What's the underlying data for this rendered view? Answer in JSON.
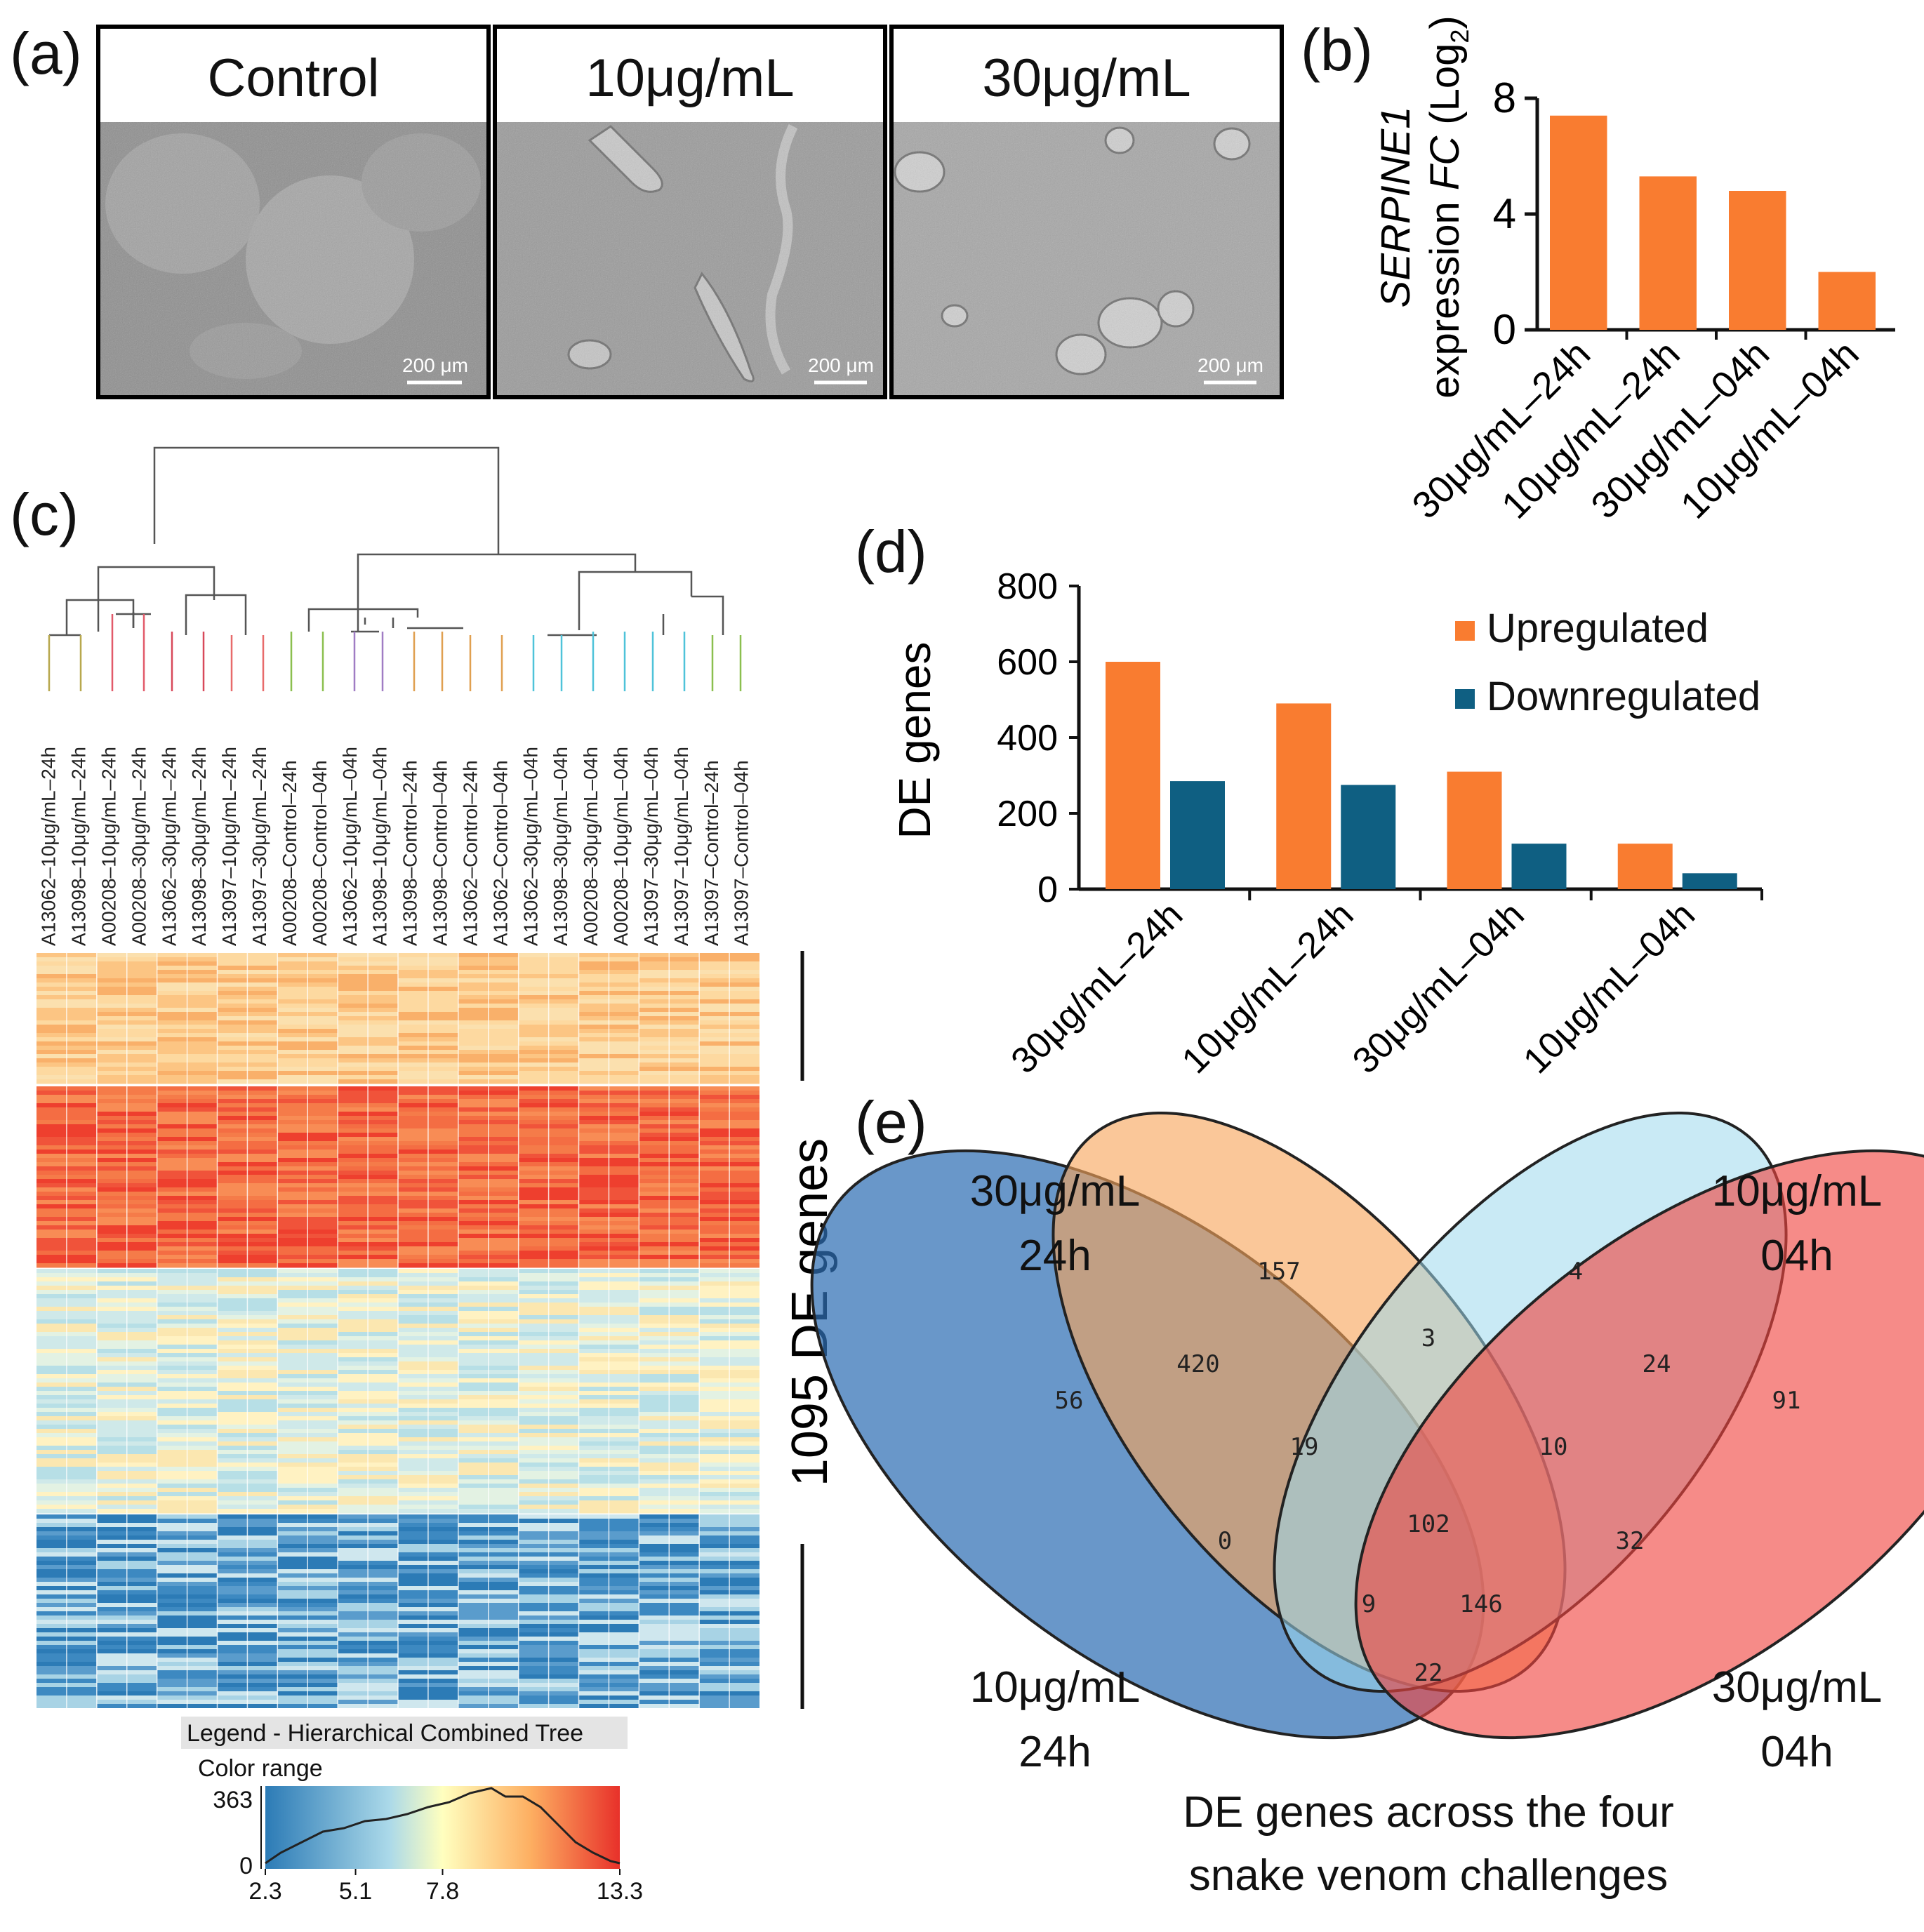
{
  "panel_labels": {
    "a": "(a)",
    "b": "(b)",
    "c": "(c)",
    "d": "(d)",
    "e": "(e)"
  },
  "panel_a": {
    "headers": [
      "Control",
      "10μg/mL",
      "30μg/mL"
    ],
    "scale_bar": "200 μm"
  },
  "colors": {
    "orange": "#f97c30",
    "teal": "#0f5f82",
    "venn_blue": "#2f6fb4",
    "venn_orange": "#f7a45a",
    "venn_cyan": "#9dd8ec",
    "venn_red": "#f0443f"
  },
  "chart_data": [
    {
      "type": "bar",
      "title": "",
      "ylabel_gene": "SERPINE1",
      "ylabel_line2_prefix": "expression ",
      "ylabel_fc": "FC",
      "ylabel_log": "(Log",
      "ylabel_sub": "2",
      "ylabel_close": ")",
      "categories": [
        "30μg/mL–24h",
        "10μg/mL–24h",
        "30μg/mL–04h",
        "10μg/mL–04h"
      ],
      "values": [
        7.4,
        5.3,
        4.8,
        2.0
      ],
      "ylim": [
        0,
        8
      ],
      "yticks": [
        "0",
        "4",
        "8"
      ],
      "ytick_values": [
        0,
        4,
        8
      ]
    },
    {
      "type": "bar",
      "ylabel": "DE genes",
      "categories": [
        "30μg/mL–24h",
        "10μg/mL–24h",
        "30μg/mL–04h",
        "10μg/mL–04h"
      ],
      "series": [
        {
          "name": "Upregulated",
          "values": [
            600,
            490,
            310,
            120
          ]
        },
        {
          "name": "Downregulated",
          "values": [
            285,
            275,
            120,
            42
          ]
        }
      ],
      "ylim": [
        0,
        800
      ],
      "yticks": [
        "0",
        "200",
        "400",
        "600",
        "800"
      ],
      "ytick_values": [
        0,
        200,
        400,
        600,
        800
      ]
    },
    {
      "type": "heatmap",
      "samples": [
        "A13062–10μg/mL–24h",
        "A13098–10μg/mL–24h",
        "A00208–10μg/mL–24h",
        "A00208–30μg/mL–24h",
        "A13062–30μg/mL–24h",
        "A13098–30μg/mL–24h",
        "A13097–10μg/mL–24h",
        "A13097–30μg/mL–24h",
        "A00208–Control–24h",
        "A00208–Control–04h",
        "A13062–10μg/mL–04h",
        "A13098–10μg/mL–04h",
        "A13098–Control–24h",
        "A13098–Control–04h",
        "A13062–Control–24h",
        "A13062–Control–04h",
        "A13062–30μg/mL–04h",
        "A13098–30μg/mL–04h",
        "A00208–30μg/mL–04h",
        "A00208–10μg/mL–04h",
        "A13097–30μg/mL–04h",
        "A13097–10μg/mL–04h",
        "A13097–Control–24h",
        "A13097–Control–04h"
      ],
      "side_label": "1095 DE genes",
      "legend_title": "Legend - Hierarchical Combined Tree",
      "color_range_label": "Color range",
      "legend_ymax": "363",
      "legend_ymin": "0",
      "legend_xticks": [
        "2.3",
        "5.1",
        "7.8",
        "13.3"
      ],
      "legend_xtick_values": [
        2.3,
        5.1,
        7.8,
        13.3
      ],
      "legend_xrange": [
        2.3,
        13.3
      ]
    },
    {
      "type": "venn",
      "sets": [
        {
          "name": "30μg/mL",
          "time": "24h"
        },
        {
          "name": "10μg/mL",
          "time": "04h"
        },
        {
          "name": "10μg/mL",
          "time": "24h"
        },
        {
          "name": "30μg/mL",
          "time": "04h"
        }
      ],
      "region_counts": [
        "157",
        "4",
        "56",
        "420",
        "3",
        "24",
        "91",
        "19",
        "10",
        "0",
        "102",
        "32",
        "9",
        "146",
        "22"
      ],
      "caption_line1": "DE genes across the four",
      "caption_line2": "snake venom challenges"
    }
  ]
}
